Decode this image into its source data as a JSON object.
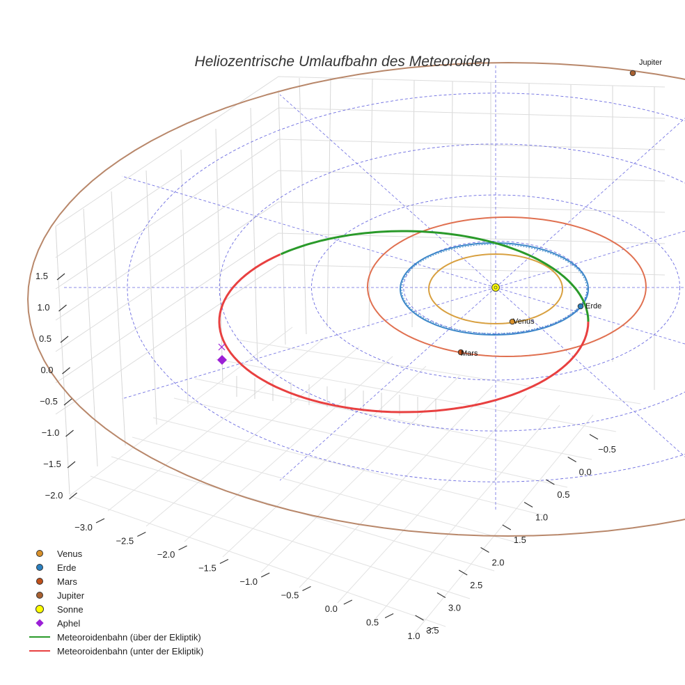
{
  "chart_data": {
    "type": "scatter",
    "title": "Heliozentrische Umlaufbahn des Meteoroiden",
    "x_ticks": [
      "−3.0",
      "−2.5",
      "−2.0",
      "−1.5",
      "−1.0",
      "−0.5",
      "0.0",
      "0.5",
      "1.0"
    ],
    "y_ticks": [
      "−0.5",
      "0.0",
      "0.5",
      "1.0",
      "1.5",
      "2.0",
      "2.5",
      "3.0",
      "3.5"
    ],
    "z_ticks": [
      "1.5",
      "1.0",
      "0.5",
      "0.0",
      "−0.5",
      "−1.0",
      "−1.5",
      "−2.0"
    ],
    "orbits": [
      {
        "name": "Venus",
        "radius_au": 0.72,
        "color": "#d8a040"
      },
      {
        "name": "Erde",
        "radius_au": 1.0,
        "color": "#3a86c8"
      },
      {
        "name": "Mars",
        "radius_au": 1.52,
        "color": "#e07050"
      },
      {
        "name": "Jupiter",
        "radius_au": 5.2,
        "color": "#b8876a"
      }
    ],
    "planets": [
      {
        "name": "Venus",
        "label": "Venus",
        "color": "#d8902a"
      },
      {
        "name": "Erde",
        "label": "Erde",
        "color": "#2a80c0"
      },
      {
        "name": "Mars",
        "label": "Mars",
        "color": "#c0501a"
      },
      {
        "name": "Jupiter",
        "label": "Jupiter",
        "color": "#a86030"
      }
    ],
    "legend": {
      "position": "bottom-left",
      "items": [
        {
          "label": "Venus",
          "symbol": "dot",
          "color": "#d8902a"
        },
        {
          "label": "Erde",
          "symbol": "dot",
          "color": "#2a80c0"
        },
        {
          "label": "Mars",
          "symbol": "dot",
          "color": "#c0501a"
        },
        {
          "label": "Jupiter",
          "symbol": "dot",
          "color": "#a86030"
        },
        {
          "label": "Sonne",
          "symbol": "dot",
          "color": "#ffff00"
        },
        {
          "label": "Aphel",
          "symbol": "diamond",
          "color": "#9b1fd6"
        },
        {
          "label": "Meteoroidenbahn (über der Ekliptik)",
          "symbol": "line",
          "color": "#2a9a2a"
        },
        {
          "label": "Meteoroidenbahn (unter der Ekliptik)",
          "symbol": "line",
          "color": "#e84040"
        }
      ]
    },
    "meteoroid_above_color": "#2a9a2a",
    "meteoroid_below_color": "#e84040",
    "aphel_color": "#9b1fd6",
    "sun_color": "#ffff00",
    "grid": true,
    "ecliptic_grid_color": "#6a6ae0"
  }
}
